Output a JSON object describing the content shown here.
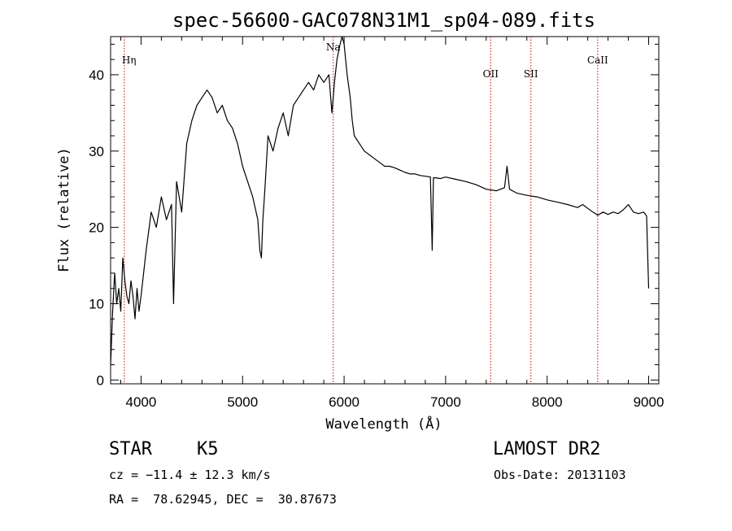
{
  "chart_data": {
    "type": "line",
    "title": "spec-56600-GAC078N31M1_sp04-089.fits",
    "xlabel": "Wavelength (Å)",
    "ylabel": "Flux (relative)",
    "xlim": [
      3700,
      9100
    ],
    "ylim": [
      -0.5,
      45
    ],
    "xticks": [
      4000,
      5000,
      6000,
      7000,
      8000,
      9000
    ],
    "yticks": [
      0,
      10,
      20,
      30,
      40
    ],
    "grid": false,
    "series_color": "#000000",
    "line_color": "#cc0000",
    "lines": [
      {
        "label": "Hη",
        "x": 3835
      },
      {
        "label": "Na",
        "x": 5893
      },
      {
        "label": "OII",
        "x": 7444
      },
      {
        "label": "SII",
        "x": 7840
      },
      {
        "label": "CaII",
        "x": 8498
      }
    ],
    "x": [
      3700,
      3720,
      3740,
      3760,
      3780,
      3800,
      3820,
      3840,
      3860,
      3880,
      3900,
      3920,
      3940,
      3960,
      3980,
      4000,
      4050,
      4100,
      4150,
      4200,
      4250,
      4300,
      4320,
      4350,
      4400,
      4450,
      4500,
      4550,
      4600,
      4650,
      4700,
      4750,
      4800,
      4850,
      4900,
      4950,
      5000,
      5050,
      5100,
      5150,
      5170,
      5185,
      5200,
      5220,
      5250,
      5300,
      5350,
      5400,
      5450,
      5500,
      5550,
      5600,
      5650,
      5700,
      5750,
      5800,
      5850,
      5880,
      5893,
      5905,
      5930,
      5960,
      5980,
      6000,
      6030,
      6060,
      6080,
      6100,
      6150,
      6200,
      6250,
      6300,
      6350,
      6400,
      6450,
      6500,
      6550,
      6600,
      6650,
      6700,
      6750,
      6800,
      6850,
      6868,
      6880,
      6900,
      6950,
      7000,
      7100,
      7200,
      7300,
      7400,
      7500,
      7580,
      7605,
      7630,
      7700,
      7800,
      7900,
      8000,
      8100,
      8200,
      8300,
      8350,
      8400,
      8450,
      8500,
      8550,
      8600,
      8650,
      8700,
      8750,
      8800,
      8850,
      8900,
      8950,
      8980,
      9000
    ],
    "values": [
      2,
      9,
      14,
      10,
      12,
      9,
      16,
      13,
      11,
      10,
      13,
      11,
      8,
      12,
      9,
      11,
      17,
      22,
      20,
      24,
      21,
      23,
      10,
      26,
      22,
      31,
      34,
      36,
      37,
      38,
      37,
      35,
      36,
      34,
      33,
      31,
      28,
      26,
      24,
      21,
      17,
      16,
      21,
      25,
      32,
      30,
      33,
      35,
      32,
      36,
      37,
      38,
      39,
      38,
      40,
      39,
      40,
      35,
      37,
      39,
      42,
      44,
      45,
      44,
      40,
      37,
      34,
      32,
      31,
      30,
      29.5,
      29,
      28.5,
      28,
      28,
      27.8,
      27.5,
      27.2,
      27,
      27,
      26.8,
      26.7,
      26.6,
      17,
      26.5,
      26.5,
      26.4,
      26.6,
      26.3,
      26,
      25.6,
      25,
      24.8,
      25.2,
      28,
      25,
      24.5,
      24.2,
      24,
      23.6,
      23.3,
      23,
      22.6,
      23,
      22.5,
      22,
      21.6,
      22,
      21.7,
      22,
      21.8,
      22.3,
      23,
      22,
      21.8,
      22,
      21.5,
      12
    ]
  },
  "info": {
    "object_type": "STAR",
    "subclass": "K5",
    "survey": "LAMOST DR2",
    "redshift": "cz = −11.4 ± 12.3 km/s",
    "obs_date": "Obs-Date: 20131103",
    "coords": "RA =  78.62945, DEC =  30.87673"
  }
}
